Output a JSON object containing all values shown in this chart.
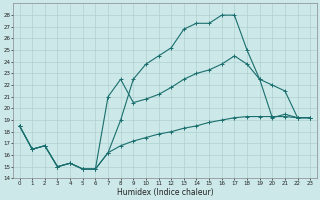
{
  "xlabel": "Humidex (Indice chaleur)",
  "bg_color": "#cce8e8",
  "line_color": "#1a6e6e",
  "grid_color": "#b0d0d0",
  "ylim": [
    14,
    29
  ],
  "xlim": [
    -0.5,
    23.5
  ],
  "yticks": [
    14,
    15,
    16,
    17,
    18,
    19,
    20,
    21,
    22,
    23,
    24,
    25,
    26,
    27,
    28
  ],
  "xticks": [
    0,
    1,
    2,
    3,
    4,
    5,
    6,
    7,
    8,
    9,
    10,
    11,
    12,
    13,
    14,
    15,
    16,
    17,
    18,
    19,
    20,
    21,
    22,
    23
  ],
  "line1_x": [
    0,
    1,
    2,
    3,
    4,
    5,
    6,
    7,
    8,
    9,
    10,
    11,
    12,
    13,
    14,
    15,
    16,
    17,
    18,
    19,
    20,
    21,
    22,
    23
  ],
  "line1_y": [
    18.5,
    16.5,
    16.8,
    15.0,
    15.3,
    14.8,
    14.8,
    16.2,
    19.0,
    22.5,
    23.8,
    24.5,
    25.2,
    26.8,
    27.3,
    27.3,
    28.0,
    28.0,
    25.0,
    22.5,
    19.2,
    19.5,
    19.2,
    19.2
  ],
  "line2_x": [
    0,
    1,
    2,
    3,
    4,
    5,
    6,
    7,
    8,
    9,
    10,
    11,
    12,
    13,
    14,
    15,
    16,
    17,
    18,
    19,
    20,
    21,
    22,
    23
  ],
  "line2_y": [
    18.5,
    16.5,
    16.8,
    15.0,
    15.3,
    14.8,
    14.8,
    21.0,
    22.5,
    20.5,
    20.8,
    21.2,
    21.8,
    22.5,
    23.0,
    23.3,
    23.8,
    24.5,
    23.8,
    22.5,
    22.0,
    21.5,
    19.2,
    19.2
  ],
  "line3_x": [
    0,
    1,
    2,
    3,
    4,
    5,
    6,
    7,
    8,
    9,
    10,
    11,
    12,
    13,
    14,
    15,
    16,
    17,
    18,
    19,
    20,
    21,
    22,
    23
  ],
  "line3_y": [
    18.5,
    16.5,
    16.8,
    15.0,
    15.3,
    14.8,
    14.8,
    16.2,
    16.8,
    17.2,
    17.5,
    17.8,
    18.0,
    18.3,
    18.5,
    18.8,
    19.0,
    19.2,
    19.3,
    19.3,
    19.3,
    19.3,
    19.2,
    19.2
  ]
}
